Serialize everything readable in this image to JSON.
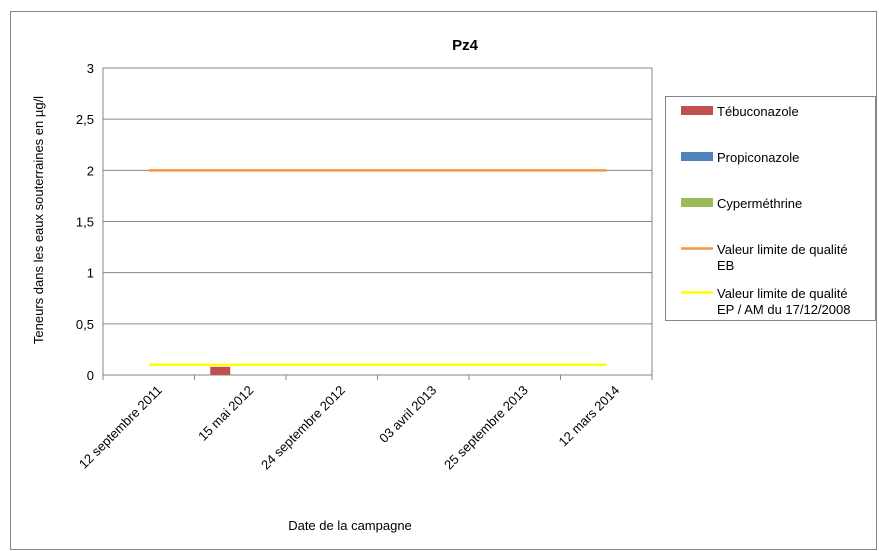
{
  "chart_data": {
    "type": "bar",
    "title": "Pz4",
    "xlabel": "Date de la campagne",
    "ylabel": "Teneurs dans les eaux souterraines en µg/l",
    "categories": [
      "12 septembre 2011",
      "15 mai 2012",
      "24 septembre 2012",
      "03 avril 2013",
      "25 septembre 2013",
      "12 mars 2014"
    ],
    "ylim": [
      0,
      3
    ],
    "yticks": [
      0,
      0.5,
      1,
      1.5,
      2,
      2.5,
      3
    ],
    "ytick_labels": [
      "0",
      "0,5",
      "1",
      "1,5",
      "2",
      "2,5",
      "3"
    ],
    "grid": true,
    "legend_position": "right",
    "series": [
      {
        "name": "Tébuconazole",
        "kind": "bar",
        "color": "#c0504d",
        "values": [
          0,
          0.08,
          0,
          0,
          0,
          0
        ]
      },
      {
        "name": "Propiconazole",
        "kind": "bar",
        "color": "#4f81bd",
        "values": [
          0,
          0,
          0,
          0,
          0,
          0
        ]
      },
      {
        "name": "Cyperméthrine",
        "kind": "bar",
        "color": "#9bbb59",
        "values": [
          0,
          0,
          0,
          0,
          0,
          0
        ]
      },
      {
        "name": "Valeur limite de qualité EB",
        "kind": "line",
        "color": "#f79646",
        "values": [
          2,
          2,
          2,
          2,
          2,
          2
        ]
      },
      {
        "name": "Valeur limite de qualité EP / AM du 17/12/2008",
        "kind": "line",
        "color": "#ffff00",
        "values": [
          0.1,
          0.1,
          0.1,
          0.1,
          0.1,
          0.1
        ]
      }
    ]
  }
}
